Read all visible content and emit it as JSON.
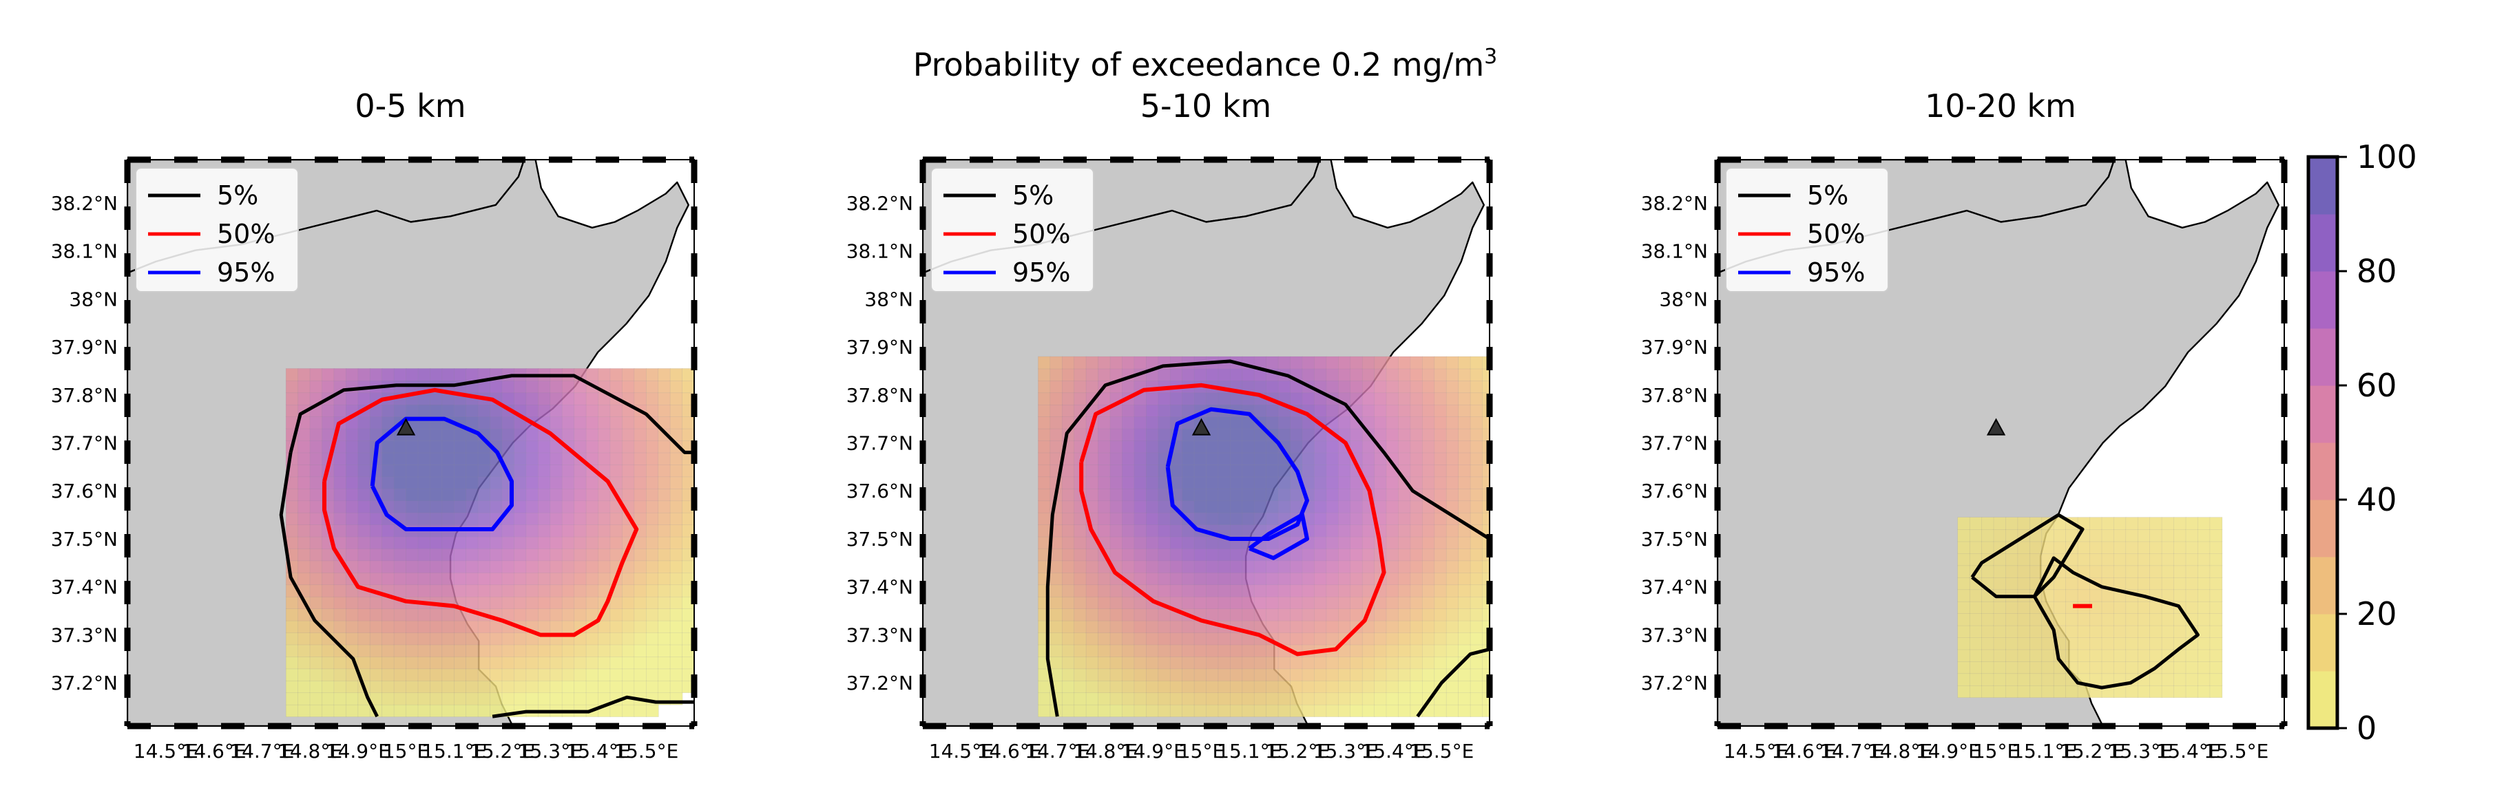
{
  "figure": {
    "suptitle": "Probability of exceedance 0.2 mg/m",
    "suptitle_superscript": "3"
  },
  "colors": {
    "land": "#c8c8c8",
    "sea": "#ffffff",
    "contour_5": "#000000",
    "contour_50": "#ff0000",
    "contour_95": "#0000ff",
    "vent_marker": "#333333"
  },
  "colorbar": {
    "min": 0,
    "max": 100,
    "ticks": [
      0,
      20,
      40,
      60,
      80,
      100
    ],
    "levels": 10,
    "colormap": "plasma_r-like (yellow to blue-purple)"
  },
  "chart_data": [
    {
      "type": "heatmap",
      "title": "0-5 km",
      "legend": {
        "position": "upper-left",
        "entries": [
          "5%",
          "50%",
          "95%"
        ]
      },
      "xlabel": "",
      "ylabel": "",
      "xticks": [
        "14.5°E",
        "14.6°E",
        "14.7°E",
        "14.8°E",
        "14.9°E",
        "15°E",
        "15.1°E",
        "15.2°E",
        "15.3°E",
        "15.4°E",
        "15.5°E"
      ],
      "yticks": [
        "37.2°N",
        "37.3°N",
        "37.4°N",
        "37.5°N",
        "37.6°N",
        "37.7°N",
        "37.8°N",
        "37.9°N",
        "38°N",
        "38.1°N",
        "38.2°N"
      ],
      "xlim": [
        14.42,
        15.6
      ],
      "ylim": [
        37.11,
        38.29
      ],
      "vent": {
        "lon": 15.0,
        "lat": 37.73
      },
      "field": {
        "center_lon": 15.04,
        "center_lat": 37.66,
        "core_radius": 0.09,
        "decay": 0.45,
        "stretch_lon": 1.25,
        "shift_lon": 0.12,
        "extent_lon": [
          14.75,
          15.62
        ],
        "extent_lat": [
          37.13,
          37.85
        ]
      },
      "contours": {
        "5%": [
          [
            14.76,
            37.68
          ],
          [
            14.78,
            37.76
          ],
          [
            14.87,
            37.81
          ],
          [
            14.98,
            37.82
          ],
          [
            15.1,
            37.82
          ],
          [
            15.22,
            37.84
          ],
          [
            15.35,
            37.84
          ],
          [
            15.5,
            37.76
          ],
          [
            15.58,
            37.68
          ],
          [
            15.6,
            37.68
          ]
        ],
        "5%_b": [
          [
            14.76,
            37.68
          ],
          [
            14.74,
            37.55
          ],
          [
            14.76,
            37.42
          ],
          [
            14.81,
            37.33
          ],
          [
            14.89,
            37.25
          ],
          [
            14.92,
            37.17
          ],
          [
            14.94,
            37.13
          ]
        ],
        "5%_c": [
          [
            15.18,
            37.13
          ],
          [
            15.25,
            37.14
          ],
          [
            15.38,
            37.14
          ],
          [
            15.46,
            37.17
          ],
          [
            15.52,
            37.16
          ],
          [
            15.6,
            37.16
          ]
        ],
        "50%": [
          [
            14.83,
            37.62
          ],
          [
            14.86,
            37.74
          ],
          [
            14.95,
            37.79
          ],
          [
            15.06,
            37.81
          ],
          [
            15.18,
            37.79
          ],
          [
            15.3,
            37.72
          ],
          [
            15.42,
            37.62
          ],
          [
            15.48,
            37.52
          ],
          [
            15.45,
            37.45
          ],
          [
            15.42,
            37.37
          ],
          [
            15.4,
            37.33
          ],
          [
            15.35,
            37.3
          ],
          [
            15.28,
            37.3
          ],
          [
            15.2,
            37.33
          ],
          [
            15.1,
            37.36
          ],
          [
            15.0,
            37.37
          ],
          [
            14.9,
            37.4
          ],
          [
            14.85,
            37.48
          ],
          [
            14.83,
            37.56
          ],
          [
            14.83,
            37.62
          ]
        ],
        "95%": [
          [
            14.93,
            37.61
          ],
          [
            14.94,
            37.7
          ],
          [
            15.0,
            37.75
          ],
          [
            15.08,
            37.75
          ],
          [
            15.15,
            37.72
          ],
          [
            15.19,
            37.68
          ],
          [
            15.22,
            37.62
          ],
          [
            15.22,
            37.57
          ],
          [
            15.18,
            37.52
          ],
          [
            15.08,
            37.52
          ],
          [
            15.0,
            37.52
          ],
          [
            14.96,
            37.55
          ],
          [
            14.93,
            37.61
          ]
        ]
      }
    },
    {
      "type": "heatmap",
      "title": "5-10 km",
      "legend": {
        "position": "upper-left",
        "entries": [
          "5%",
          "50%",
          "95%"
        ]
      },
      "xlabel": "",
      "ylabel": "",
      "xticks": [
        "14.5°E",
        "14.6°E",
        "14.7°E",
        "14.8°E",
        "14.9°E",
        "15°E",
        "15.1°E",
        "15.2°E",
        "15.3°E",
        "15.4°E",
        "15.5°E"
      ],
      "yticks": [
        "37.2°N",
        "37.3°N",
        "37.4°N",
        "37.5°N",
        "37.6°N",
        "37.7°N",
        "37.8°N",
        "37.9°N",
        "38°N",
        "38.1°N",
        "38.2°N"
      ],
      "xlim": [
        14.42,
        15.6
      ],
      "ylim": [
        37.11,
        38.29
      ],
      "vent": {
        "lon": 15.0,
        "lat": 37.73
      },
      "field": {
        "center_lon": 15.04,
        "center_lat": 37.64,
        "core_radius": 0.1,
        "decay": 0.47,
        "stretch_lon": 1.2,
        "shift_lon": 0.08,
        "extent_lon": [
          14.66,
          15.6
        ],
        "extent_lat": [
          37.13,
          37.87
        ]
      },
      "contours": {
        "5%": [
          [
            14.7,
            37.13
          ],
          [
            14.68,
            37.25
          ],
          [
            14.68,
            37.4
          ],
          [
            14.69,
            37.55
          ],
          [
            14.72,
            37.72
          ],
          [
            14.8,
            37.82
          ],
          [
            14.92,
            37.86
          ],
          [
            15.06,
            37.87
          ],
          [
            15.18,
            37.84
          ],
          [
            15.3,
            37.78
          ],
          [
            15.38,
            37.68
          ],
          [
            15.44,
            37.6
          ],
          [
            15.52,
            37.55
          ],
          [
            15.6,
            37.5
          ]
        ],
        "5%_b": [
          [
            15.45,
            37.13
          ],
          [
            15.5,
            37.2
          ],
          [
            15.56,
            37.26
          ],
          [
            15.6,
            37.27
          ]
        ],
        "50%": [
          [
            14.75,
            37.66
          ],
          [
            14.78,
            37.76
          ],
          [
            14.88,
            37.81
          ],
          [
            15.0,
            37.82
          ],
          [
            15.12,
            37.8
          ],
          [
            15.22,
            37.76
          ],
          [
            15.3,
            37.7
          ],
          [
            15.35,
            37.6
          ],
          [
            15.37,
            37.5
          ],
          [
            15.38,
            37.43
          ],
          [
            15.34,
            37.33
          ],
          [
            15.28,
            37.27
          ],
          [
            15.2,
            37.26
          ],
          [
            15.12,
            37.3
          ],
          [
            15.0,
            37.33
          ],
          [
            14.9,
            37.37
          ],
          [
            14.82,
            37.43
          ],
          [
            14.77,
            37.52
          ],
          [
            14.75,
            37.6
          ],
          [
            14.75,
            37.66
          ]
        ],
        "95%": [
          [
            14.93,
            37.65
          ],
          [
            14.95,
            37.74
          ],
          [
            15.02,
            37.77
          ],
          [
            15.1,
            37.76
          ],
          [
            15.16,
            37.7
          ],
          [
            15.2,
            37.64
          ],
          [
            15.22,
            37.58
          ],
          [
            15.2,
            37.53
          ],
          [
            15.14,
            37.5
          ],
          [
            15.06,
            37.5
          ],
          [
            14.99,
            37.52
          ],
          [
            14.94,
            37.57
          ],
          [
            14.93,
            37.65
          ]
        ],
        "95%_b": [
          [
            15.1,
            37.48
          ],
          [
            15.14,
            37.51
          ],
          [
            15.21,
            37.55
          ],
          [
            15.22,
            37.5
          ],
          [
            15.15,
            37.46
          ],
          [
            15.1,
            37.48
          ]
        ]
      }
    },
    {
      "type": "heatmap",
      "title": "10-20 km",
      "legend": {
        "position": "upper-left",
        "entries": [
          "5%",
          "50%",
          "95%"
        ]
      },
      "xlabel": "",
      "ylabel": "",
      "xticks": [
        "14.5°E",
        "14.6°E",
        "14.7°E",
        "14.8°E",
        "14.9°E",
        "15°E",
        "15.1°E",
        "15.2°E",
        "15.3°E",
        "15.4°E",
        "15.5°E"
      ],
      "yticks": [
        "37.2°N",
        "37.3°N",
        "37.4°N",
        "37.5°N",
        "37.6°N",
        "37.7°N",
        "37.8°N",
        "37.9°N",
        "38°N",
        "38.1°N",
        "38.2°N"
      ],
      "xlim": [
        14.42,
        15.6
      ],
      "ylim": [
        37.11,
        38.29
      ],
      "vent": {
        "lon": 15.0,
        "lat": 37.73
      },
      "field": {
        "center_lon": 15.18,
        "center_lat": 37.38,
        "core_radius": 0.0,
        "decay": 0.3,
        "stretch_lon": 1.0,
        "shift_lon": 0.0,
        "extent_lon": [
          14.92,
          15.45
        ],
        "extent_lat": [
          37.17,
          37.54
        ],
        "max_prob": 0.22
      },
      "contours": {
        "5%": [
          [
            14.95,
            37.42
          ],
          [
            14.97,
            37.45
          ],
          [
            15.05,
            37.5
          ],
          [
            15.13,
            37.55
          ],
          [
            15.18,
            37.52
          ],
          [
            15.15,
            37.47
          ],
          [
            15.12,
            37.42
          ],
          [
            15.08,
            37.38
          ],
          [
            15.0,
            37.38
          ],
          [
            14.95,
            37.42
          ]
        ],
        "5%_b": [
          [
            15.08,
            37.38
          ],
          [
            15.12,
            37.31
          ],
          [
            15.13,
            37.25
          ],
          [
            15.17,
            37.2
          ],
          [
            15.22,
            37.19
          ],
          [
            15.28,
            37.2
          ],
          [
            15.33,
            37.23
          ],
          [
            15.38,
            37.27
          ],
          [
            15.42,
            37.3
          ],
          [
            15.38,
            37.36
          ],
          [
            15.31,
            37.38
          ],
          [
            15.22,
            37.4
          ],
          [
            15.16,
            37.43
          ],
          [
            15.12,
            37.46
          ],
          [
            15.1,
            37.42
          ],
          [
            15.08,
            37.38
          ]
        ],
        "50%": [
          [
            15.16,
            37.36
          ],
          [
            15.2,
            37.36
          ]
        ]
      }
    }
  ]
}
